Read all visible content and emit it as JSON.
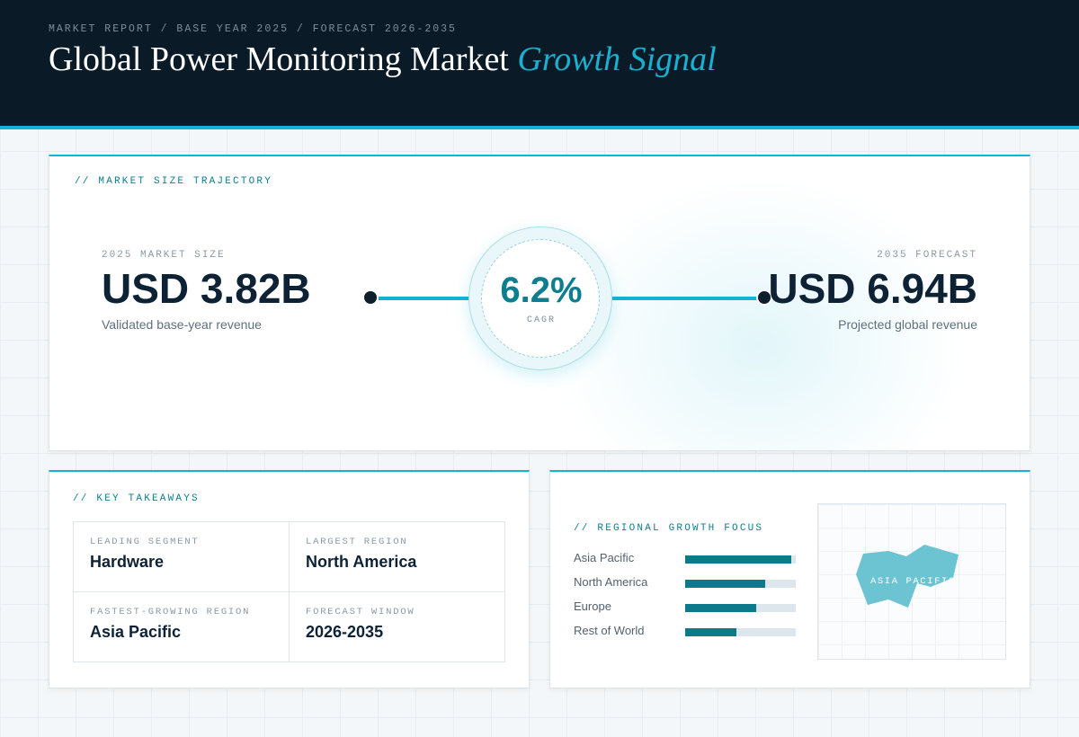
{
  "header": {
    "breadcrumb": "MARKET REPORT / BASE YEAR 2025 / FORECAST 2026-2035",
    "title_main": "Global Power Monitoring Market",
    "title_accent": "Growth Signal"
  },
  "trajectory": {
    "label": "// MARKET SIZE TRAJECTORY",
    "base": {
      "kicker": "2025 MARKET SIZE",
      "value": "USD 3.82B",
      "caption": "Validated base-year revenue"
    },
    "cagr": {
      "value": "6.2%",
      "label": "CAGR"
    },
    "forecast": {
      "kicker": "2035 FORECAST",
      "value": "USD 6.94B",
      "caption": "Projected global revenue"
    }
  },
  "takeaways": {
    "label": "// KEY TAKEAWAYS",
    "items": [
      {
        "kicker": "LEADING SEGMENT",
        "value": "Hardware"
      },
      {
        "kicker": "LARGEST REGION",
        "value": "North America"
      },
      {
        "kicker": "FASTEST-GROWING REGION",
        "value": "Asia Pacific"
      },
      {
        "kicker": "FORECAST WINDOW",
        "value": "2026-2035"
      }
    ]
  },
  "regional": {
    "label": "// REGIONAL GROWTH FOCUS",
    "bars": [
      {
        "name": "Asia Pacific",
        "level": 0.96
      },
      {
        "name": "North America",
        "level": 0.72
      },
      {
        "name": "Europe",
        "level": 0.64
      },
      {
        "name": "Rest of World",
        "level": 0.46
      }
    ],
    "map_label": "ASIA PACIFIC"
  },
  "colors": {
    "accent": "#12b3d2",
    "teal": "#0d7e8f",
    "navy": "#0a1a27",
    "map_fill": "#6cc3d2"
  }
}
